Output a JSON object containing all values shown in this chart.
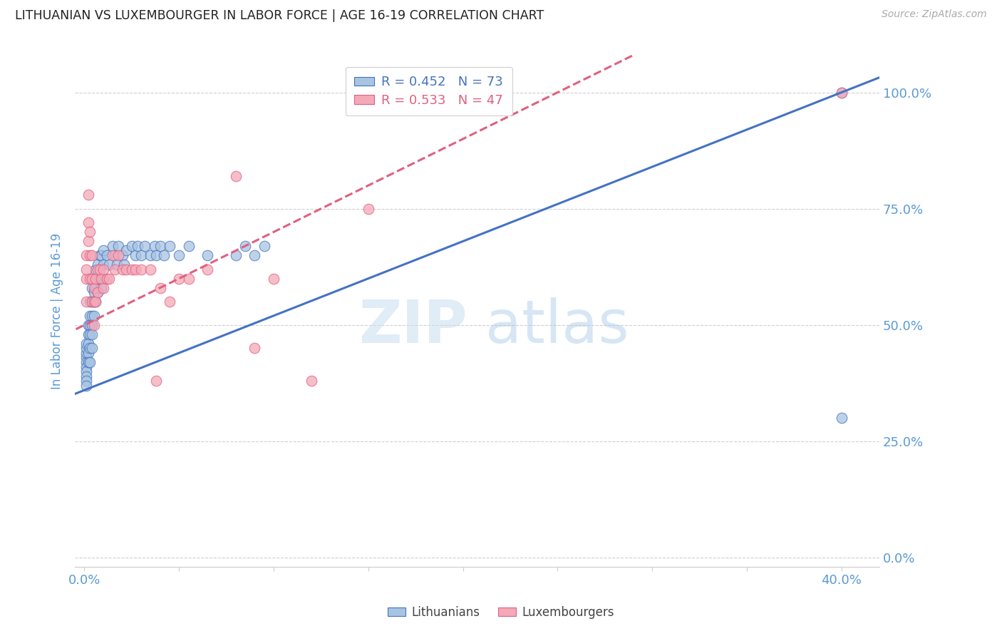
{
  "title": "LITHUANIAN VS LUXEMBOURGER IN LABOR FORCE | AGE 16-19 CORRELATION CHART",
  "source": "Source: ZipAtlas.com",
  "ylabel": "In Labor Force | Age 16-19",
  "blue_R": 0.452,
  "blue_N": 73,
  "pink_R": 0.533,
  "pink_N": 47,
  "blue_color": "#a8c4e0",
  "pink_color": "#f4a8b8",
  "blue_line_color": "#4472c4",
  "pink_line_color": "#e06080",
  "title_color": "#333333",
  "axis_color": "#5b9bd5",
  "legend_label_blue": "Lithuanians",
  "legend_label_pink": "Luxembourgers",
  "xlim_min": -0.005,
  "xlim_max": 0.42,
  "ylim_min": -0.02,
  "ylim_max": 1.08,
  "y_ticks": [
    0.0,
    0.25,
    0.5,
    0.75,
    1.0
  ],
  "x_ticks": [
    0.0,
    0.05,
    0.1,
    0.15,
    0.2,
    0.25,
    0.3,
    0.35,
    0.4
  ],
  "blue_line_x0": 0.0,
  "blue_line_y0": 0.36,
  "blue_line_x1": 0.4,
  "blue_line_y1": 1.0,
  "pink_line_x0": 0.0,
  "pink_line_y0": 0.5,
  "pink_line_x1": 0.25,
  "pink_line_y1": 1.0,
  "blue_points_x": [
    0.001,
    0.001,
    0.001,
    0.001,
    0.001,
    0.001,
    0.001,
    0.001,
    0.001,
    0.001,
    0.002,
    0.002,
    0.002,
    0.002,
    0.002,
    0.003,
    0.003,
    0.003,
    0.003,
    0.003,
    0.003,
    0.004,
    0.004,
    0.004,
    0.004,
    0.004,
    0.004,
    0.005,
    0.005,
    0.005,
    0.005,
    0.006,
    0.006,
    0.006,
    0.007,
    0.007,
    0.007,
    0.008,
    0.008,
    0.009,
    0.009,
    0.01,
    0.01,
    0.01,
    0.012,
    0.013,
    0.015,
    0.016,
    0.017,
    0.018,
    0.02,
    0.021,
    0.022,
    0.025,
    0.027,
    0.028,
    0.03,
    0.032,
    0.035,
    0.037,
    0.038,
    0.04,
    0.042,
    0.045,
    0.05,
    0.055,
    0.065,
    0.08,
    0.085,
    0.09,
    0.095,
    0.4,
    0.4
  ],
  "blue_points_y": [
    0.43,
    0.44,
    0.45,
    0.46,
    0.42,
    0.41,
    0.4,
    0.39,
    0.38,
    0.37,
    0.5,
    0.48,
    0.46,
    0.44,
    0.42,
    0.55,
    0.52,
    0.5,
    0.48,
    0.45,
    0.42,
    0.58,
    0.55,
    0.52,
    0.5,
    0.48,
    0.45,
    0.6,
    0.57,
    0.55,
    0.52,
    0.62,
    0.58,
    0.55,
    0.63,
    0.6,
    0.57,
    0.65,
    0.6,
    0.65,
    0.58,
    0.66,
    0.63,
    0.6,
    0.65,
    0.63,
    0.67,
    0.65,
    0.63,
    0.67,
    0.65,
    0.63,
    0.66,
    0.67,
    0.65,
    0.67,
    0.65,
    0.67,
    0.65,
    0.67,
    0.65,
    0.67,
    0.65,
    0.67,
    0.65,
    0.67,
    0.65,
    0.65,
    0.67,
    0.65,
    0.67,
    1.0,
    0.3
  ],
  "pink_points_x": [
    0.001,
    0.001,
    0.001,
    0.001,
    0.002,
    0.002,
    0.002,
    0.003,
    0.003,
    0.003,
    0.004,
    0.004,
    0.004,
    0.005,
    0.005,
    0.005,
    0.006,
    0.006,
    0.007,
    0.007,
    0.008,
    0.009,
    0.01,
    0.01,
    0.012,
    0.013,
    0.015,
    0.016,
    0.018,
    0.02,
    0.022,
    0.025,
    0.027,
    0.03,
    0.035,
    0.038,
    0.04,
    0.045,
    0.05,
    0.055,
    0.065,
    0.08,
    0.09,
    0.1,
    0.12,
    0.15,
    0.4
  ],
  "pink_points_y": [
    0.55,
    0.6,
    0.62,
    0.65,
    0.68,
    0.72,
    0.78,
    0.6,
    0.65,
    0.7,
    0.6,
    0.65,
    0.55,
    0.58,
    0.55,
    0.5,
    0.6,
    0.55,
    0.62,
    0.57,
    0.62,
    0.6,
    0.62,
    0.58,
    0.6,
    0.6,
    0.65,
    0.62,
    0.65,
    0.62,
    0.62,
    0.62,
    0.62,
    0.62,
    0.62,
    0.38,
    0.58,
    0.55,
    0.6,
    0.6,
    0.62,
    0.82,
    0.45,
    0.6,
    0.38,
    0.75,
    1.0
  ]
}
